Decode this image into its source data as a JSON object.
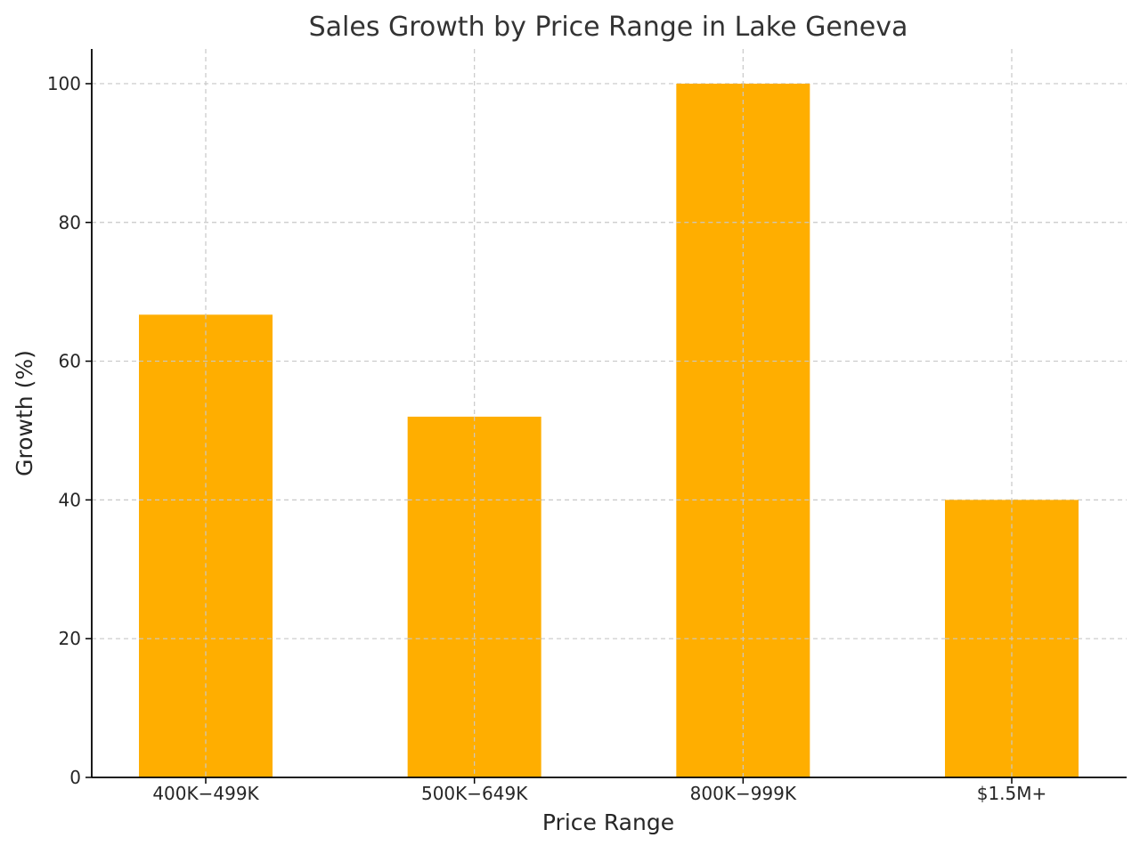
{
  "chart_data": {
    "type": "bar",
    "title": "Sales Growth by Price Range in Lake Geneva",
    "xlabel": "Price Range",
    "ylabel": "Growth (%)",
    "categories": [
      "400K−499K",
      "500K−649K",
      "800K−999K",
      "$1.5M+"
    ],
    "values": [
      66.7,
      52,
      100,
      40
    ],
    "ylim": [
      0,
      105
    ],
    "yticks": [
      0,
      20,
      40,
      60,
      80,
      100
    ],
    "bar_color": "#FFAE00",
    "grid": true,
    "grid_style": "dashed"
  }
}
